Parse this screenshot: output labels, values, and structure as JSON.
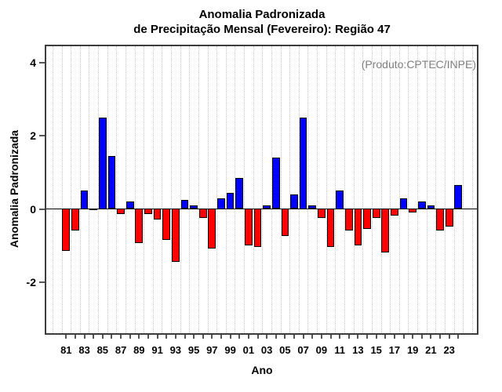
{
  "title": {
    "line1": "Anomalia Padronizada",
    "line2": "de Precipitação Mensal (Fevereiro): Região 47"
  },
  "annotation": {
    "text": "(Produto:CPTEC/INPE)",
    "color": "#7f7f7f"
  },
  "axes": {
    "x_label": "Ano",
    "y_label": "Anomalia Padronizada",
    "y_ticks": [
      -2,
      0,
      2,
      4
    ],
    "x_tick_labels": [
      "81",
      "83",
      "85",
      "87",
      "89",
      "91",
      "93",
      "95",
      "97",
      "99",
      "01",
      "03",
      "05",
      "07",
      "09",
      "11",
      "13",
      "15",
      "17",
      "19",
      "21",
      "23"
    ]
  },
  "colors": {
    "positive": "#0000ff",
    "negative": "#ff0000",
    "bar_border": "#000000",
    "grid": "#c9c9c9",
    "axis_box": "#3d3d3d",
    "tick": "#555555",
    "zero_line": "#000000",
    "annotation_gray": "#7f7f7f"
  },
  "chart_data": {
    "type": "bar",
    "title": "Anomalia Padronizada de Precipitação Mensal (Fevereiro): Região 47",
    "xlabel": "Ano",
    "ylabel": "Anomalia Padronizada",
    "annotation": "(Produto:CPTEC/INPE)",
    "grid": "vertical-dotted",
    "legend": "none",
    "ylim": [
      -3.4,
      4.5
    ],
    "y_ticks": [
      -2,
      0,
      2,
      4
    ],
    "years": [
      1981,
      1982,
      1983,
      1984,
      1985,
      1986,
      1987,
      1988,
      1989,
      1990,
      1991,
      1992,
      1993,
      1994,
      1995,
      1996,
      1997,
      1998,
      1999,
      2000,
      2001,
      2002,
      2003,
      2004,
      2005,
      2006,
      2007,
      2008,
      2009,
      2010,
      2011,
      2012,
      2013,
      2014,
      2015,
      2016,
      2017,
      2018,
      2019,
      2020,
      2021,
      2022,
      2023,
      2024
    ],
    "values": [
      -1.15,
      -0.6,
      0.5,
      -0.05,
      2.5,
      1.45,
      -0.15,
      0.2,
      -0.95,
      -0.15,
      -0.3,
      -0.85,
      -1.45,
      0.25,
      0.1,
      -0.25,
      -1.1,
      0.3,
      0.45,
      0.85,
      -1.0,
      -1.05,
      0.1,
      1.4,
      -0.75,
      0.4,
      2.5,
      0.1,
      -0.25,
      -1.05,
      0.5,
      -0.6,
      -1.0,
      -0.55,
      -0.25,
      -1.2,
      -0.2,
      0.3,
      -0.1,
      0.2,
      0.1,
      -0.6,
      -0.5,
      0.65
    ],
    "positive_color": "#0000ff",
    "negative_color": "#ff0000"
  }
}
